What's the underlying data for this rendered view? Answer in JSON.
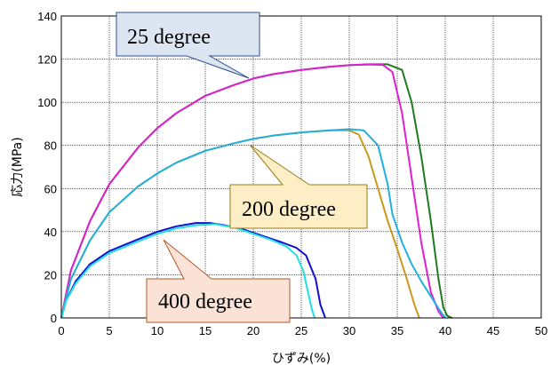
{
  "chart_data": {
    "type": "line",
    "title": "",
    "xlabel": "ひずみ(%)",
    "ylabel": "応力(MPa)",
    "xlim": [
      0,
      50
    ],
    "ylim": [
      0,
      140
    ],
    "x_ticks": [
      0,
      5,
      10,
      15,
      20,
      25,
      30,
      35,
      40,
      45,
      50
    ],
    "y_ticks": [
      0,
      20,
      40,
      60,
      80,
      100,
      120,
      140
    ],
    "x_tick_labels": [
      "0",
      "5",
      "10",
      "15",
      "20",
      "25",
      "30",
      "35",
      "40",
      "45",
      "50"
    ],
    "y_tick_labels": [
      "0",
      "20",
      "40",
      "60",
      "80",
      "100",
      "120",
      "140"
    ],
    "grid": true,
    "series": [
      {
        "color": "#1f7a1f",
        "points": [
          [
            0,
            0
          ],
          [
            1,
            22
          ],
          [
            3,
            45
          ],
          [
            5,
            62
          ],
          [
            8,
            79
          ],
          [
            10,
            88
          ],
          [
            12,
            95
          ],
          [
            15,
            103
          ],
          [
            18,
            108
          ],
          [
            20,
            111
          ],
          [
            22,
            113
          ],
          [
            25,
            115
          ],
          [
            28,
            116.5
          ],
          [
            30,
            117.2
          ],
          [
            32,
            117.6
          ],
          [
            34,
            117.6
          ],
          [
            35.5,
            115
          ],
          [
            36.5,
            100
          ],
          [
            37.5,
            75
          ],
          [
            38.5,
            45
          ],
          [
            39.3,
            18
          ],
          [
            39.8,
            5
          ],
          [
            40.2,
            1
          ],
          [
            40.7,
            0
          ]
        ]
      },
      {
        "color": "#e020d0",
        "points": [
          [
            0,
            0
          ],
          [
            1,
            22
          ],
          [
            3,
            45
          ],
          [
            5,
            62
          ],
          [
            8,
            79
          ],
          [
            10,
            88
          ],
          [
            12,
            95
          ],
          [
            15,
            103
          ],
          [
            18,
            108
          ],
          [
            20,
            111
          ],
          [
            22,
            113
          ],
          [
            25,
            115
          ],
          [
            28,
            116.5
          ],
          [
            30,
            117.2
          ],
          [
            32,
            117.5
          ],
          [
            33.5,
            117.3
          ],
          [
            34.5,
            114
          ],
          [
            35.5,
            95
          ],
          [
            36.5,
            65
          ],
          [
            37.5,
            35
          ],
          [
            38.5,
            12
          ],
          [
            39.3,
            3
          ],
          [
            39.8,
            0
          ]
        ]
      },
      {
        "color": "#c89a1a",
        "points": [
          [
            0,
            0
          ],
          [
            1,
            18
          ],
          [
            3,
            36
          ],
          [
            5,
            49
          ],
          [
            8,
            61
          ],
          [
            10,
            67
          ],
          [
            12,
            72
          ],
          [
            15,
            77.5
          ],
          [
            18,
            81
          ],
          [
            20,
            83
          ],
          [
            22,
            84.5
          ],
          [
            25,
            86
          ],
          [
            28,
            87
          ],
          [
            30,
            87
          ],
          [
            31,
            85
          ],
          [
            32,
            75
          ],
          [
            33,
            60
          ],
          [
            34,
            45
          ],
          [
            35,
            32
          ],
          [
            36,
            18
          ],
          [
            36.8,
            6
          ],
          [
            37.3,
            0
          ]
        ]
      },
      {
        "color": "#20b0e0",
        "points": [
          [
            0,
            0
          ],
          [
            1,
            18
          ],
          [
            3,
            36
          ],
          [
            5,
            49
          ],
          [
            8,
            61
          ],
          [
            10,
            67
          ],
          [
            12,
            72
          ],
          [
            15,
            77.5
          ],
          [
            18,
            81
          ],
          [
            20,
            83
          ],
          [
            22,
            84.5
          ],
          [
            25,
            86
          ],
          [
            28,
            87
          ],
          [
            30,
            87.5
          ],
          [
            31.5,
            87
          ],
          [
            33,
            80
          ],
          [
            34,
            62
          ],
          [
            34.5,
            48
          ],
          [
            35.5,
            35
          ],
          [
            36.5,
            25
          ],
          [
            37.5,
            17
          ],
          [
            38.5,
            10
          ],
          [
            39.5,
            3
          ],
          [
            40,
            0
          ]
        ]
      },
      {
        "color": "#1010d0",
        "points": [
          [
            0,
            0
          ],
          [
            0.5,
            8
          ],
          [
            1.5,
            17
          ],
          [
            3,
            25
          ],
          [
            5,
            31
          ],
          [
            8,
            36.5
          ],
          [
            10,
            40
          ],
          [
            12,
            42.5
          ],
          [
            14,
            44
          ],
          [
            15.5,
            44
          ],
          [
            17,
            43
          ],
          [
            19,
            41
          ],
          [
            21,
            38
          ],
          [
            23,
            35
          ],
          [
            24.5,
            32.5
          ],
          [
            25.5,
            29
          ],
          [
            26.5,
            18
          ],
          [
            27,
            6
          ],
          [
            27.5,
            0
          ]
        ]
      },
      {
        "color": "#20e0e0",
        "points": [
          [
            0,
            0
          ],
          [
            0.5,
            8
          ],
          [
            1.5,
            16
          ],
          [
            3,
            24
          ],
          [
            5,
            30
          ],
          [
            8,
            35.5
          ],
          [
            10,
            39
          ],
          [
            12,
            41.5
          ],
          [
            14,
            43
          ],
          [
            16,
            43.5
          ],
          [
            18,
            42
          ],
          [
            20,
            39
          ],
          [
            22,
            36
          ],
          [
            23.5,
            33
          ],
          [
            24.5,
            29
          ],
          [
            25.2,
            22
          ],
          [
            25.7,
            12
          ],
          [
            26.1,
            4
          ],
          [
            26.4,
            0
          ]
        ]
      }
    ],
    "annotations": [
      "25 degree",
      "200 degree",
      "400 degree"
    ]
  },
  "callouts": {
    "c25": "25 degree",
    "c200": "200 degree",
    "c400": "400 degree"
  }
}
